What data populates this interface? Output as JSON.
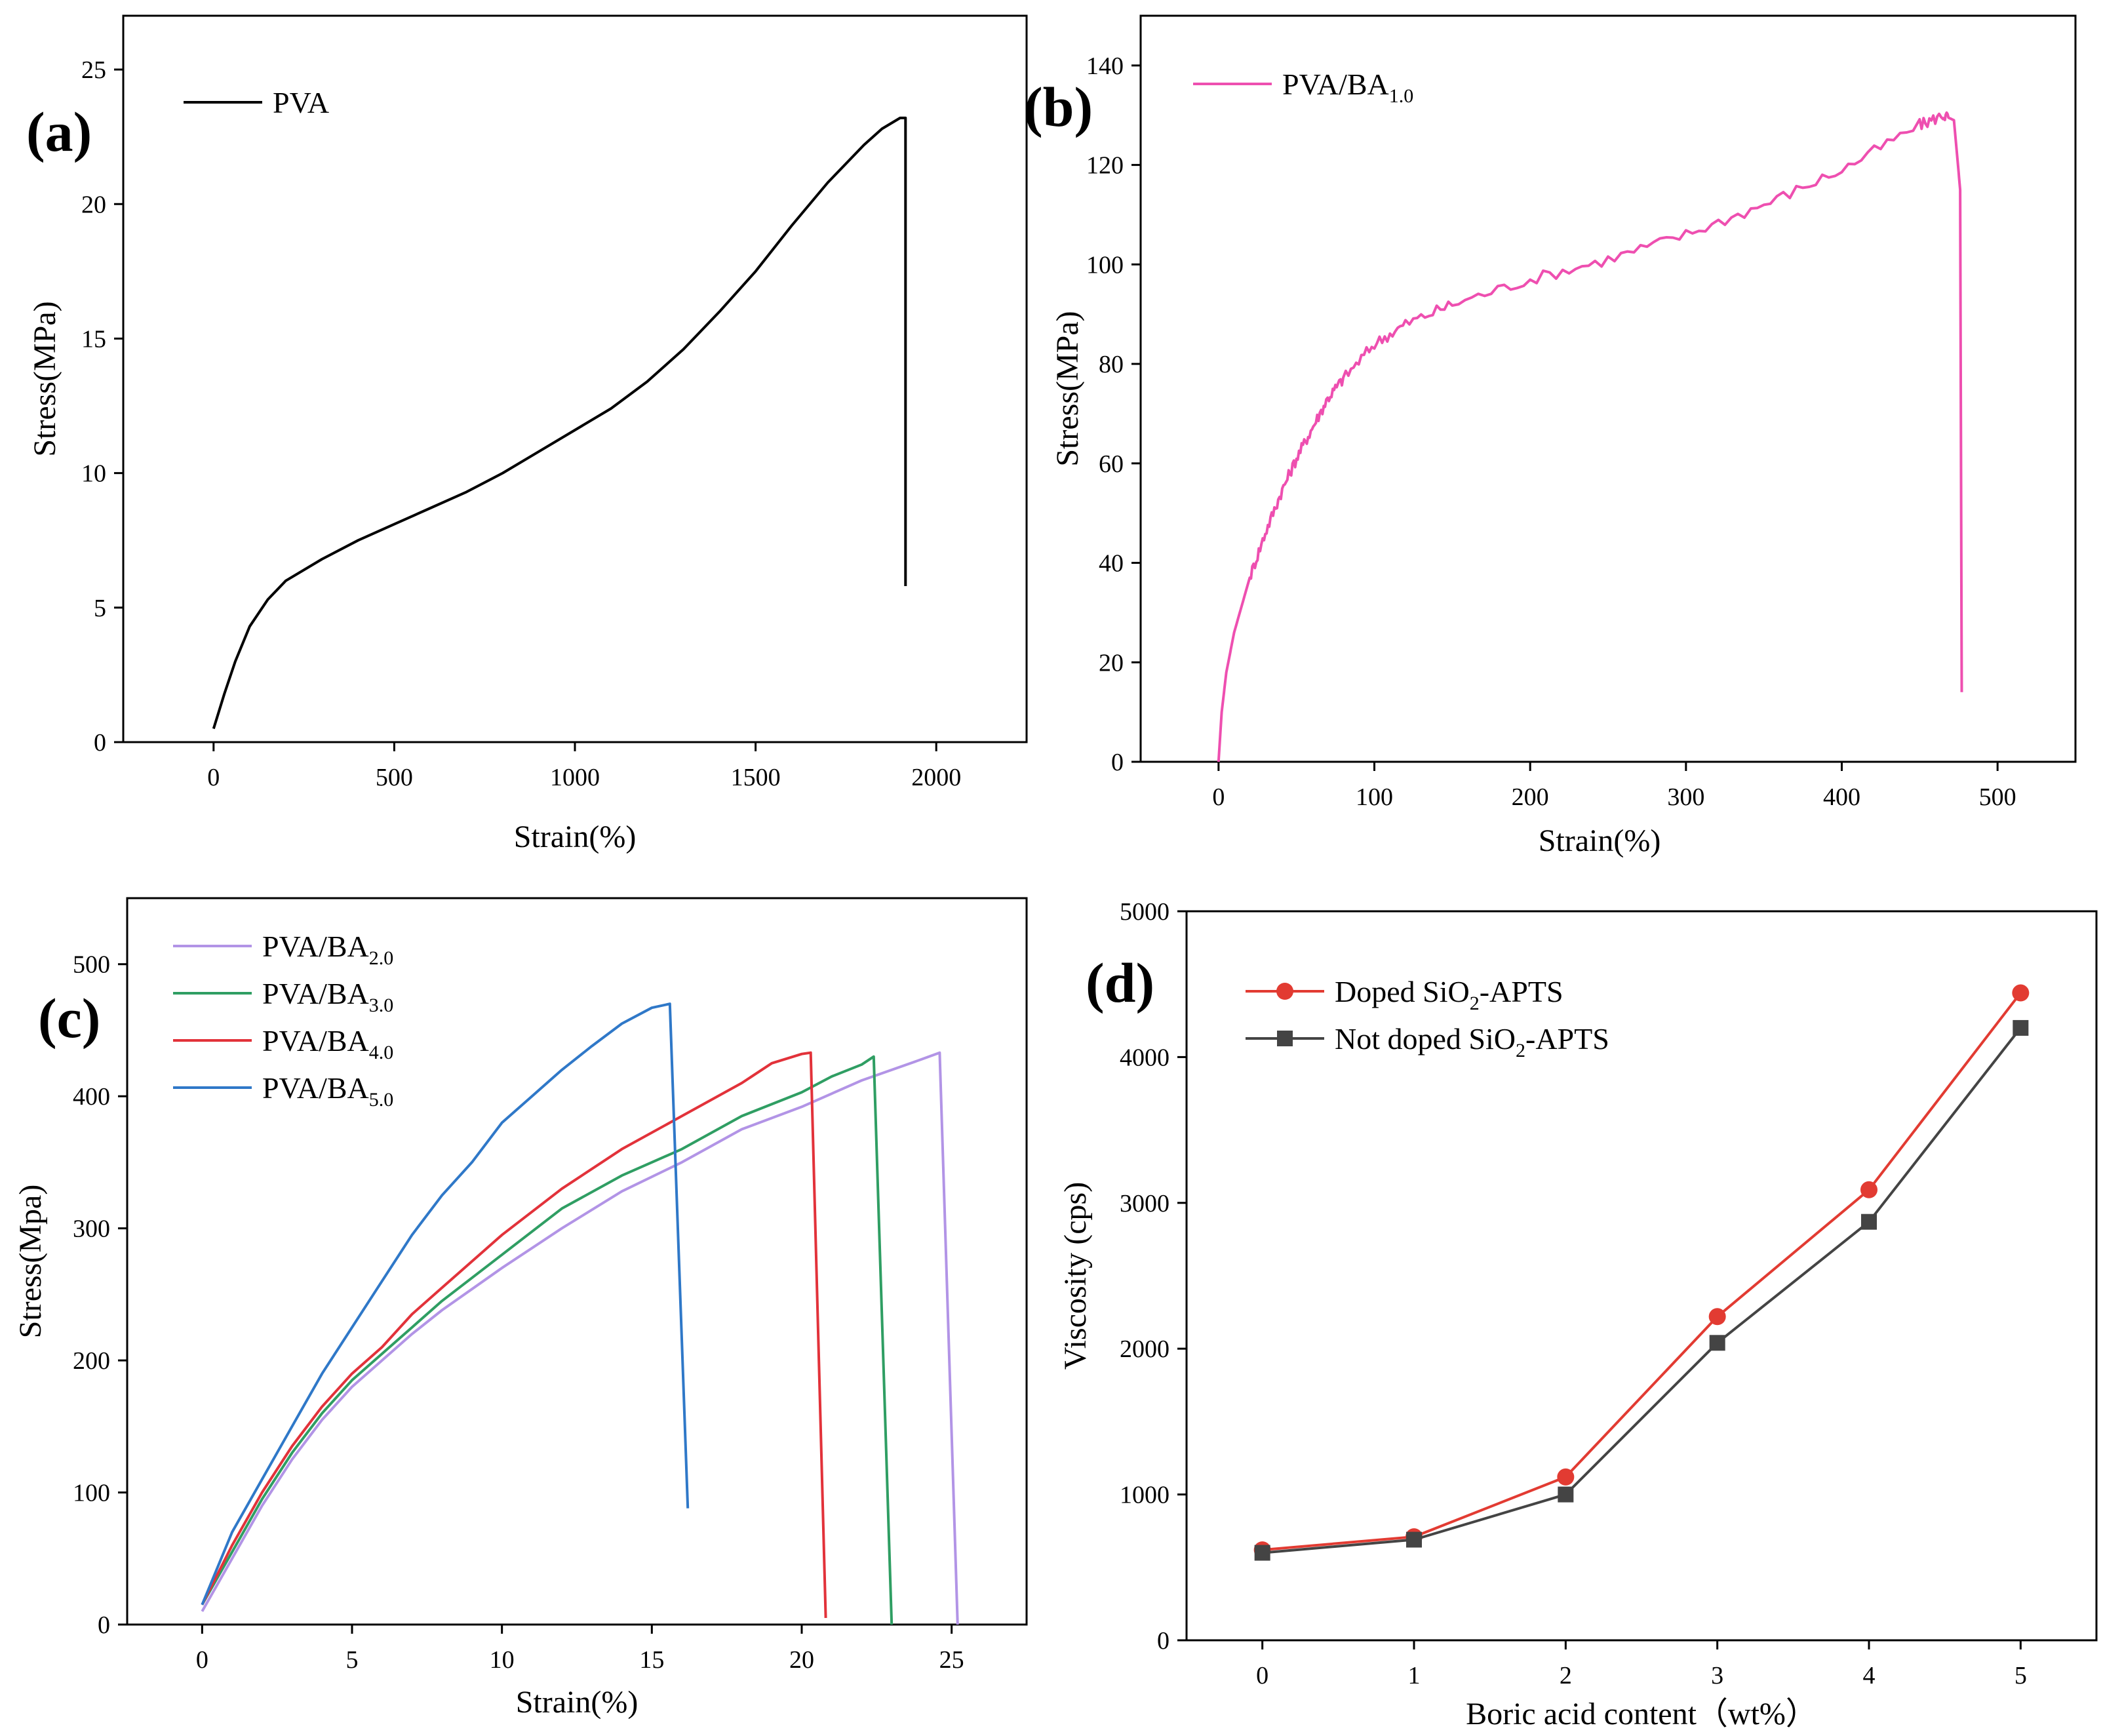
{
  "figure": {
    "panels": [
      {
        "id": "a",
        "panel_label": "(a)",
        "chart_data": {
          "type": "line",
          "xlabel": "Strain(%)",
          "ylabel": "Stress(MPa)",
          "xlim": [
            -250,
            2250
          ],
          "ylim": [
            0,
            27
          ],
          "xticks": [
            0,
            500,
            1000,
            1500,
            2000
          ],
          "yticks": [
            0,
            5,
            10,
            15,
            20,
            25
          ],
          "legend_position": "top-left",
          "noise": 0,
          "series": [
            {
              "name": "PVA",
              "color": "#000000",
              "legend": {
                "main": "PVA",
                "sub": ""
              },
              "x": [
                0,
                30,
                60,
                100,
                150,
                200,
                300,
                400,
                500,
                600,
                700,
                800,
                900,
                1000,
                1100,
                1200,
                1300,
                1400,
                1500,
                1600,
                1700,
                1800,
                1850,
                1900,
                1910,
                1915,
                1915
              ],
              "y": [
                0.5,
                1.8,
                3.0,
                4.3,
                5.3,
                6.0,
                6.8,
                7.5,
                8.1,
                8.7,
                9.3,
                10.0,
                10.8,
                11.6,
                12.4,
                13.4,
                14.6,
                16.0,
                17.5,
                19.2,
                20.8,
                22.2,
                22.8,
                23.2,
                23.2,
                23.2,
                5.8
              ]
            }
          ]
        }
      },
      {
        "id": "b",
        "panel_label": "(b)",
        "chart_data": {
          "type": "line",
          "xlabel": "Strain(%)",
          "ylabel": "Stress(MPa)",
          "xlim": [
            -50,
            550
          ],
          "ylim": [
            0,
            150
          ],
          "xticks": [
            0,
            100,
            200,
            300,
            400,
            500
          ],
          "yticks": [
            0,
            20,
            40,
            60,
            80,
            100,
            120,
            140
          ],
          "legend_position": "top-left",
          "noise": 1.2,
          "series": [
            {
              "name": "PVA/BA1.0",
              "color": "#ee4fb0",
              "legend": {
                "main": "PVA/BA",
                "sub": "1.0"
              },
              "x": [
                0,
                2,
                5,
                10,
                20,
                30,
                40,
                50,
                60,
                70,
                80,
                100,
                120,
                150,
                200,
                250,
                300,
                350,
                400,
                450,
                465,
                472,
                476,
                477
              ],
              "y": [
                0,
                10,
                18,
                26,
                37,
                46,
                54,
                61,
                67,
                73,
                77,
                84,
                88,
                92,
                97,
                101,
                106,
                112,
                119,
                128,
                130,
                129,
                115,
                14
              ]
            }
          ]
        }
      },
      {
        "id": "c",
        "panel_label": "(c)",
        "chart_data": {
          "type": "line",
          "xlabel": "Strain(%)",
          "ylabel": "Stress(Mpa)",
          "xlim": [
            -2.5,
            27.5
          ],
          "ylim": [
            0,
            550
          ],
          "xticks": [
            0,
            5,
            10,
            15,
            20,
            25
          ],
          "yticks": [
            0,
            100,
            200,
            300,
            400,
            500
          ],
          "legend_position": "top-left",
          "noise": 0,
          "series": [
            {
              "name": "PVA/BA2.0",
              "color": "#b294e6",
              "legend": {
                "main": "PVA/BA",
                "sub": "2.0"
              },
              "x": [
                0,
                1,
                2,
                3,
                4,
                5,
                6,
                7,
                8,
                10,
                12,
                14,
                16,
                18,
                20,
                22,
                24,
                24.6,
                25.2
              ],
              "y": [
                10,
                50,
                90,
                125,
                155,
                180,
                200,
                220,
                238,
                270,
                300,
                328,
                350,
                375,
                392,
                412,
                428,
                433,
                0
              ]
            },
            {
              "name": "PVA/BA3.0",
              "color": "#2f9e63",
              "legend": {
                "main": "PVA/BA",
                "sub": "3.0"
              },
              "x": [
                0,
                1,
                2,
                3,
                4,
                5,
                6,
                7,
                8,
                10,
                12,
                14,
                16,
                18,
                20,
                21,
                22,
                22.4,
                23.0
              ],
              "y": [
                15,
                55,
                95,
                130,
                160,
                185,
                205,
                225,
                245,
                280,
                315,
                340,
                360,
                385,
                403,
                415,
                424,
                430,
                0
              ]
            },
            {
              "name": "PVA/BA4.0",
              "color": "#e2323a",
              "legend": {
                "main": "PVA/BA",
                "sub": "4.0"
              },
              "x": [
                0,
                1,
                2,
                3,
                4,
                5,
                6,
                7,
                8,
                10,
                12,
                14,
                16,
                18,
                19,
                20,
                20.3,
                20.8
              ],
              "y": [
                15,
                60,
                100,
                135,
                165,
                190,
                210,
                235,
                255,
                295,
                330,
                360,
                385,
                410,
                425,
                432,
                433,
                5
              ]
            },
            {
              "name": "PVA/BA5.0",
              "color": "#2f78c8",
              "legend": {
                "main": "PVA/BA",
                "sub": "5.0"
              },
              "x": [
                0,
                1,
                2,
                3,
                4,
                5,
                6,
                7,
                8,
                9,
                10,
                11,
                12,
                13,
                14,
                15,
                15.6,
                16.2
              ],
              "y": [
                15,
                70,
                110,
                150,
                190,
                225,
                260,
                295,
                325,
                350,
                380,
                400,
                420,
                438,
                455,
                467,
                470,
                88
              ]
            }
          ]
        }
      },
      {
        "id": "d",
        "panel_label": "(d)",
        "chart_data": {
          "type": "line",
          "xlabel": "Boric acid content（wt%）",
          "ylabel": "Viscosity (cps)",
          "xlim": [
            -0.5,
            5.5
          ],
          "ylim": [
            0,
            5000
          ],
          "xticks": [
            0,
            1,
            2,
            3,
            4,
            5
          ],
          "yticks": [
            0,
            1000,
            2000,
            3000,
            4000,
            5000
          ],
          "legend_position": "top-left",
          "noise": 0,
          "series": [
            {
              "name": "Doped SiO2-APTS",
              "color": "#e23b32",
              "marker": "circle",
              "legend": {
                "main": "Doped SiO",
                "sub": "2",
                "tail": "-APTS"
              },
              "x": [
                0,
                1,
                2,
                3,
                4,
                5
              ],
              "y": [
                620,
                710,
                1120,
                2220,
                3090,
                4440
              ]
            },
            {
              "name": "Not doped SiO2-APTS",
              "color": "#444444",
              "marker": "square",
              "legend": {
                "main": "Not doped SiO",
                "sub": "2",
                "tail": "-APTS"
              },
              "x": [
                0,
                1,
                2,
                3,
                4,
                5
              ],
              "y": [
                600,
                690,
                1000,
                2040,
                2870,
                4200
              ]
            }
          ]
        }
      }
    ]
  }
}
